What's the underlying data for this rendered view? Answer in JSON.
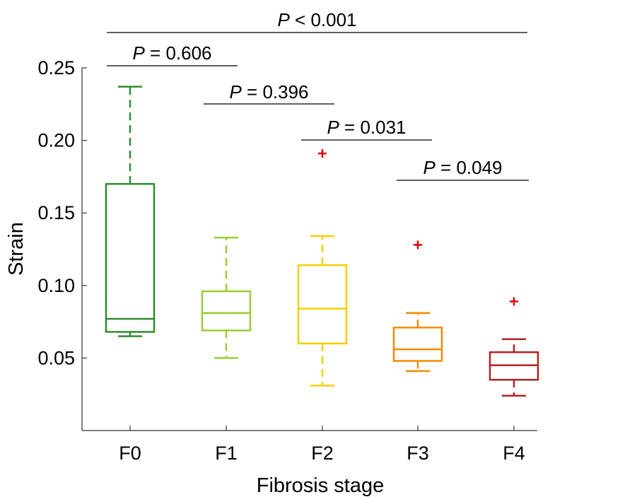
{
  "chart_data": {
    "type": "box",
    "xlabel": "Fibrosis stage",
    "ylabel": "Strain",
    "ylim": [
      0.0,
      0.25
    ],
    "yticks": [
      "0.05",
      "0.10",
      "0.15",
      "0.20",
      "0.25"
    ],
    "categories": [
      "F0",
      "F1",
      "F2",
      "F3",
      "F4"
    ],
    "boxes": [
      {
        "category": "F0",
        "color": "#2e8b2e",
        "whisker_low": 0.065,
        "q1": 0.068,
        "median": 0.077,
        "q3": 0.17,
        "whisker_high": 0.237,
        "outliers": []
      },
      {
        "category": "F1",
        "color": "#9acd32",
        "whisker_low": 0.05,
        "q1": 0.069,
        "median": 0.081,
        "q3": 0.096,
        "whisker_high": 0.133,
        "outliers": []
      },
      {
        "category": "F2",
        "color": "#f5d000",
        "whisker_low": 0.031,
        "q1": 0.06,
        "median": 0.084,
        "q3": 0.114,
        "whisker_high": 0.134,
        "outliers": [
          0.191
        ]
      },
      {
        "category": "F3",
        "color": "#f28c00",
        "whisker_low": 0.041,
        "q1": 0.048,
        "median": 0.056,
        "q3": 0.071,
        "whisker_high": 0.081,
        "outliers": [
          0.128
        ]
      },
      {
        "category": "F4",
        "color": "#b22222",
        "whisker_low": 0.024,
        "q1": 0.035,
        "median": 0.045,
        "q3": 0.054,
        "whisker_high": 0.063,
        "outliers": [
          0.089
        ]
      }
    ],
    "outlier_color": "#e00000",
    "comparisons": [
      {
        "from": "F0",
        "to": "F4",
        "p_symbol": "P",
        "p_text": " < 0.001"
      },
      {
        "from": "F0",
        "to": "F1",
        "p_symbol": "P",
        "p_text": " = 0.606"
      },
      {
        "from": "F1",
        "to": "F2",
        "p_symbol": "P",
        "p_text": " = 0.396"
      },
      {
        "from": "F2",
        "to": "F3",
        "p_symbol": "P",
        "p_text": " = 0.031"
      },
      {
        "from": "F3",
        "to": "F4",
        "p_symbol": "P",
        "p_text": " = 0.049"
      }
    ]
  }
}
